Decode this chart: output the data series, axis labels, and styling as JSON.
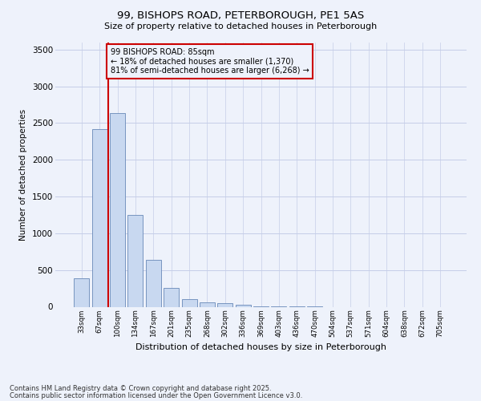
{
  "title1": "99, BISHOPS ROAD, PETERBOROUGH, PE1 5AS",
  "title2": "Size of property relative to detached houses in Peterborough",
  "xlabel": "Distribution of detached houses by size in Peterborough",
  "ylabel": "Number of detached properties",
  "categories": [
    "33sqm",
    "67sqm",
    "100sqm",
    "134sqm",
    "167sqm",
    "201sqm",
    "235sqm",
    "268sqm",
    "302sqm",
    "336sqm",
    "369sqm",
    "403sqm",
    "436sqm",
    "470sqm",
    "504sqm",
    "537sqm",
    "571sqm",
    "604sqm",
    "638sqm",
    "672sqm",
    "705sqm"
  ],
  "values": [
    390,
    2420,
    2630,
    1250,
    640,
    260,
    105,
    60,
    45,
    25,
    10,
    5,
    2,
    1,
    0,
    0,
    0,
    0,
    0,
    0,
    0
  ],
  "bar_color": "#c8d8f0",
  "bar_edge_color": "#6888b8",
  "vline_color": "#cc0000",
  "annotation_title": "99 BISHOPS ROAD: 85sqm",
  "annotation_line1": "← 18% of detached houses are smaller (1,370)",
  "annotation_line2": "81% of semi-detached houses are larger (6,268) →",
  "annotation_box_color": "#cc0000",
  "ylim": [
    0,
    3600
  ],
  "yticks": [
    0,
    500,
    1000,
    1500,
    2000,
    2500,
    3000,
    3500
  ],
  "footer1": "Contains HM Land Registry data © Crown copyright and database right 2025.",
  "footer2": "Contains public sector information licensed under the Open Government Licence v3.0.",
  "bg_color": "#eef2fb",
  "grid_color": "#c5cde8"
}
